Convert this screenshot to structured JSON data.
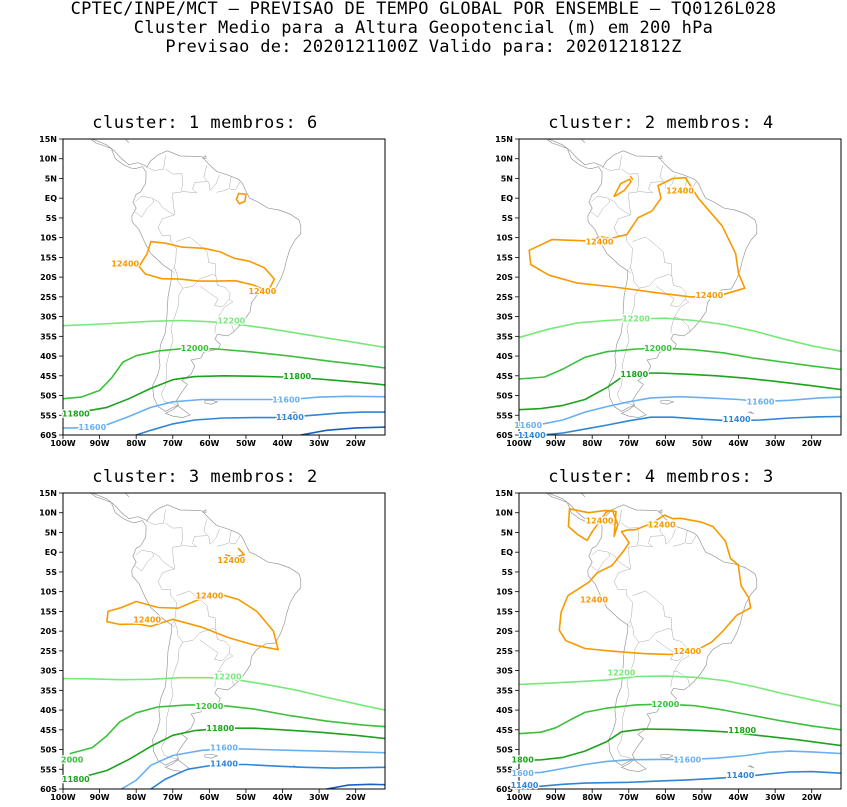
{
  "header": {
    "line1": "CPTEC/INPE/MCT – PREVISAO DE TEMPO GLOBAL POR ENSEMBLE – TQ0126L028",
    "line2": "Cluster Medio para a Altura Geopotencial (m) em 200 hPa",
    "line3": "Previsao de: 2020121100Z   Valido para: 2020121812Z"
  },
  "axes": {
    "lat_ticks": [
      "15N",
      "10N",
      "5N",
      "EQ",
      "5S",
      "10S",
      "15S",
      "20S",
      "25S",
      "30S",
      "35S",
      "40S",
      "45S",
      "50S",
      "55S",
      "60S"
    ],
    "lon_ticks": [
      "100W",
      "90W",
      "80W",
      "70W",
      "60W",
      "50W",
      "40W",
      "30W",
      "20W"
    ]
  },
  "colors": {
    "c12400": "#f79a00",
    "c12200": "#78e87a",
    "c12000": "#3cc03c",
    "c11800": "#1ea21e",
    "c11600": "#6ab0f0",
    "c11400": "#2f86d8",
    "c11200": "#1d5fc0"
  },
  "panels": [
    {
      "title": "cluster:  1   membros:  6",
      "labels": [
        {
          "text": "12400",
          "color": "c12400",
          "lon": -83.0,
          "lat": -16.5
        },
        {
          "text": "12400",
          "color": "c12400",
          "lon": -45.5,
          "lat": -23.5
        },
        {
          "text": "12200",
          "color": "c12200",
          "lon": -54.0,
          "lat": -31.0
        },
        {
          "text": "12000",
          "color": "c12000",
          "lon": -64.0,
          "lat": -38.0
        },
        {
          "text": "11800",
          "color": "c11800",
          "lon": -36.0,
          "lat": -45.0
        },
        {
          "text": "11800",
          "color": "c11800",
          "lon": -96.5,
          "lat": -54.5
        },
        {
          "text": "11600",
          "color": "c11600",
          "lon": -39.0,
          "lat": -51.0
        },
        {
          "text": "11600",
          "color": "c11600",
          "lon": -92.0,
          "lat": -58.0
        },
        {
          "text": "11400",
          "color": "c11400",
          "lon": -38.0,
          "lat": -55.5
        }
      ]
    },
    {
      "title": "cluster:  2   membros:  4",
      "labels": [
        {
          "text": "12400",
          "color": "c12400",
          "lon": -56.0,
          "lat": 2.0
        },
        {
          "text": "12400",
          "color": "c12400",
          "lon": -78.0,
          "lat": -11.0
        },
        {
          "text": "12400",
          "color": "c12400",
          "lon": -48.0,
          "lat": -24.5
        },
        {
          "text": "12200",
          "color": "c12200",
          "lon": -68.0,
          "lat": -30.5
        },
        {
          "text": "12000",
          "color": "c12000",
          "lon": -62.0,
          "lat": -38.0
        },
        {
          "text": "11800",
          "color": "c11800",
          "lon": -68.5,
          "lat": -44.5
        },
        {
          "text": "11600",
          "color": "c11600",
          "lon": -34.0,
          "lat": -51.5
        },
        {
          "text": "11600",
          "color": "c11600",
          "lon": -97.5,
          "lat": -57.5
        },
        {
          "text": "11400",
          "color": "c11400",
          "lon": -40.5,
          "lat": -56.0
        },
        {
          "text": "11400",
          "color": "c11400",
          "lon": -96.5,
          "lat": -60.0
        }
      ]
    },
    {
      "title": "cluster:  3   membros:  2",
      "labels": [
        {
          "text": "12400",
          "color": "c12400",
          "lon": -54.0,
          "lat": -2.0
        },
        {
          "text": "12400",
          "color": "c12400",
          "lon": -60.0,
          "lat": -11.0
        },
        {
          "text": "12400",
          "color": "c12400",
          "lon": -77.0,
          "lat": -17.0
        },
        {
          "text": "12200",
          "color": "c12200",
          "lon": -55.0,
          "lat": -31.5
        },
        {
          "text": "12000",
          "color": "c12000",
          "lon": -60.0,
          "lat": -39.0
        },
        {
          "text": "11800",
          "color": "c11800",
          "lon": -57.0,
          "lat": -44.5
        },
        {
          "text": "2000",
          "color": "c12000",
          "lon": -97.5,
          "lat": -52.5
        },
        {
          "text": "11800",
          "color": "c11800",
          "lon": -96.5,
          "lat": -57.5
        },
        {
          "text": "11600",
          "color": "c11600",
          "lon": -56.0,
          "lat": -49.5
        },
        {
          "text": "11400",
          "color": "c11400",
          "lon": -56.0,
          "lat": -53.5
        }
      ]
    },
    {
      "title": "cluster:  4   membros:  3",
      "labels": [
        {
          "text": "12400",
          "color": "c12400",
          "lon": -78.0,
          "lat": 8.0
        },
        {
          "text": "12400",
          "color": "c12400",
          "lon": -61.0,
          "lat": 7.0
        },
        {
          "text": "12400",
          "color": "c12400",
          "lon": -79.5,
          "lat": -12.0
        },
        {
          "text": "12400",
          "color": "c12400",
          "lon": -54.0,
          "lat": -25.0
        },
        {
          "text": "12200",
          "color": "c12200",
          "lon": -72.0,
          "lat": -30.5
        },
        {
          "text": "12000",
          "color": "c12000",
          "lon": -60.0,
          "lat": -38.5
        },
        {
          "text": "11800",
          "color": "c11800",
          "lon": -39.0,
          "lat": -45.0
        },
        {
          "text": "1800",
          "color": "c11800",
          "lon": -99.0,
          "lat": -52.5
        },
        {
          "text": "11600",
          "color": "c11600",
          "lon": -54.0,
          "lat": -52.5
        },
        {
          "text": "1600",
          "color": "c11600",
          "lon": -99.0,
          "lat": -56.0
        },
        {
          "text": "11400",
          "color": "c11400",
          "lon": -39.5,
          "lat": -56.5
        },
        {
          "text": "11400",
          "color": "c11400",
          "lon": -98.5,
          "lat": -59.0
        }
      ]
    }
  ]
}
